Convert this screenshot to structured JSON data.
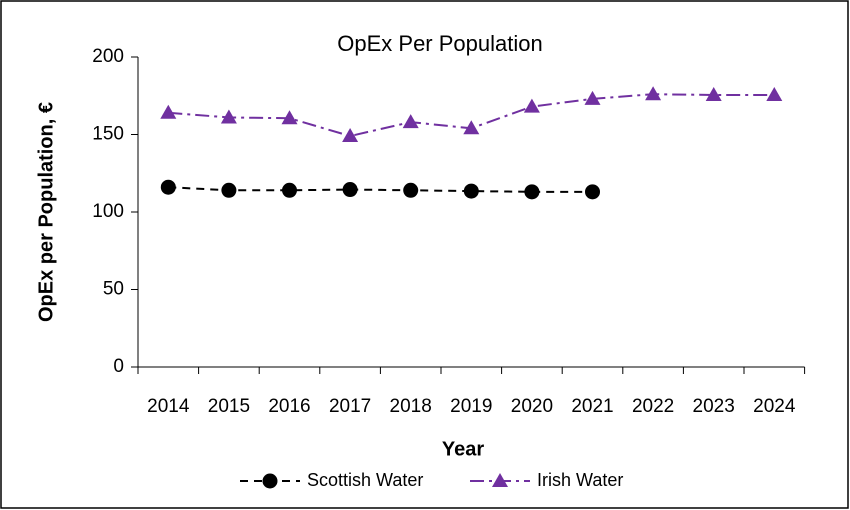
{
  "chart_data": {
    "type": "line",
    "title": "OpEx Per Population",
    "xlabel": "Year",
    "ylabel": "OpEx per Population, €",
    "categories": [
      "2014",
      "2015",
      "2016",
      "2017",
      "2018",
      "2019",
      "2020",
      "2021",
      "2022",
      "2023",
      "2024"
    ],
    "series": [
      {
        "name": "Scottish Water",
        "color": "#000000",
        "marker": "circle",
        "values": [
          116,
          114,
          114,
          114.5,
          114,
          113.5,
          113,
          113,
          null,
          null,
          null
        ]
      },
      {
        "name": "Irish Water",
        "color": "#7030a0",
        "marker": "triangle",
        "values": [
          164,
          161,
          160.5,
          149,
          158,
          154,
          168,
          173,
          176,
          175.5,
          175.5
        ]
      }
    ],
    "ylim": [
      0,
      200
    ],
    "yticks": [
      0,
      50,
      100,
      150,
      200
    ],
    "legend": "bottom"
  }
}
